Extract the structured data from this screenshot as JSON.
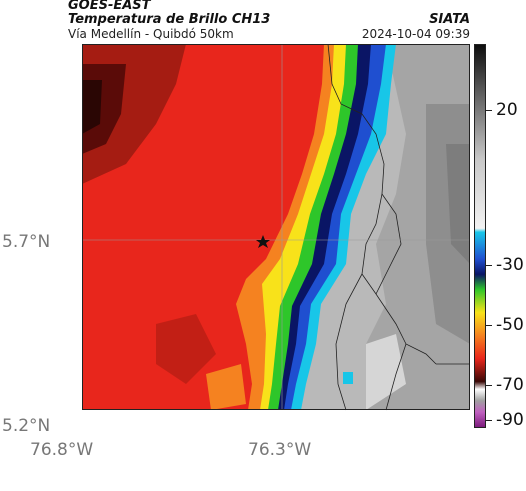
{
  "header": {
    "satellite": "GOES-EAST",
    "product": "Temperatura de Brillo CH13",
    "location": "Vía Medellín - Quibdó 50km",
    "organization": "SIATA",
    "timestamp": "2024-10-04 09:39"
  },
  "axes": {
    "y_ticks": [
      "5.7°N",
      "5.2°N"
    ],
    "x_ticks": [
      "76.8°W",
      "76.3°W"
    ]
  },
  "colorbar": {
    "labels": [
      "20",
      "-30",
      "-50",
      "-70",
      "-90"
    ]
  },
  "marker": {
    "icon": "star-icon"
  },
  "colors": {
    "warm_red": "#e8261c",
    "dark_red": "#6e0f0a",
    "orange": "#f58220",
    "yellow": "#f8e21a",
    "green": "#2ec62a",
    "cyan": "#18c6e8",
    "blue": "#1f4fd0",
    "navy": "#0a1565",
    "gray": "#b4b4b4"
  }
}
